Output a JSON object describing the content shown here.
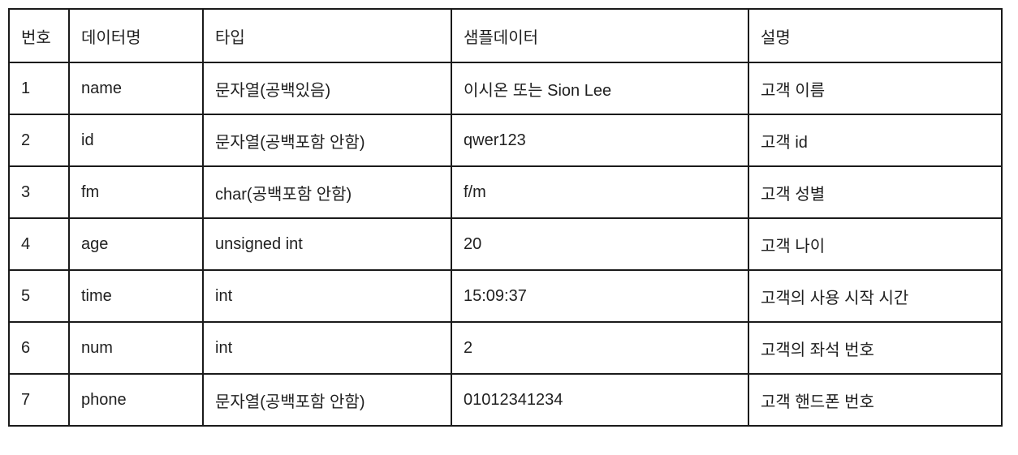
{
  "table": {
    "headers": [
      "번호",
      "데이터명",
      "타입",
      "샘플데이터",
      "설명"
    ],
    "rows": [
      [
        "1",
        "name",
        "문자열(공백있음)",
        "이시온 또는 Sion Lee",
        "고객 이름"
      ],
      [
        "2",
        "id",
        "문자열(공백포함 안함)",
        "qwer123",
        "고객 id"
      ],
      [
        "3",
        "fm",
        "char(공백포함 안함)",
        "f/m",
        "고객 성별"
      ],
      [
        "4",
        "age",
        "unsigned int",
        "20",
        "고객 나이"
      ],
      [
        "5",
        "time",
        "int",
        "15:09:37",
        "고객의 사용 시작 시간"
      ],
      [
        "6",
        "num",
        "int",
        "2",
        "고객의 좌석 번호"
      ],
      [
        "7",
        "phone",
        "문자열(공백포함 안함)",
        "01012341234",
        "고객 핸드폰 번호"
      ]
    ]
  }
}
